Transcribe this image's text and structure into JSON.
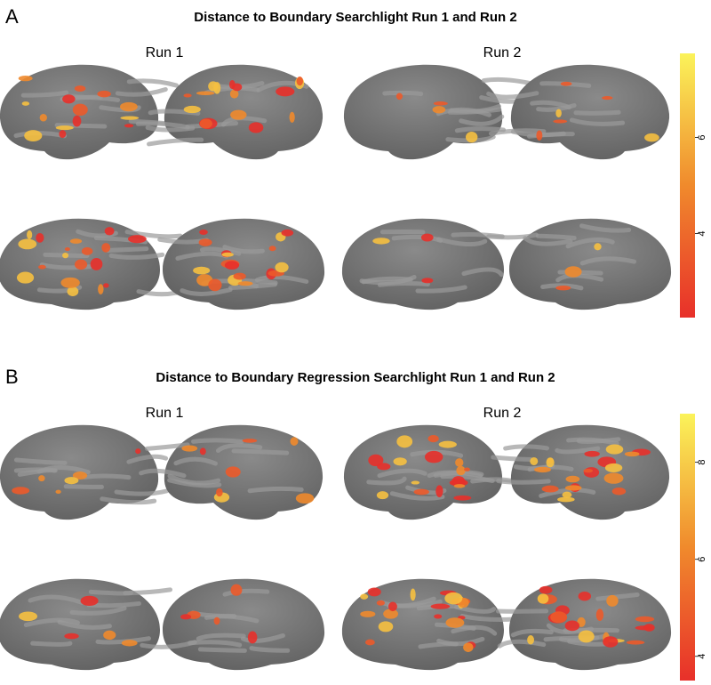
{
  "panels": [
    {
      "label": "A",
      "title": "Distance to Boundary Searchlight Run 1 and Run 2",
      "runs": [
        "Run 1",
        "Run 2"
      ],
      "colorbar": {
        "range": [
          2.25,
          7.75
        ],
        "ticks": [
          4,
          6
        ]
      }
    },
    {
      "label": "B",
      "title": "Distance to Boundary Regression Searchlight Run 1 and Run 2",
      "runs": [
        "Run 1",
        "Run 2"
      ],
      "colorbar": {
        "range": [
          3.5,
          9
        ],
        "ticks": [
          4,
          6,
          8
        ]
      }
    }
  ]
}
